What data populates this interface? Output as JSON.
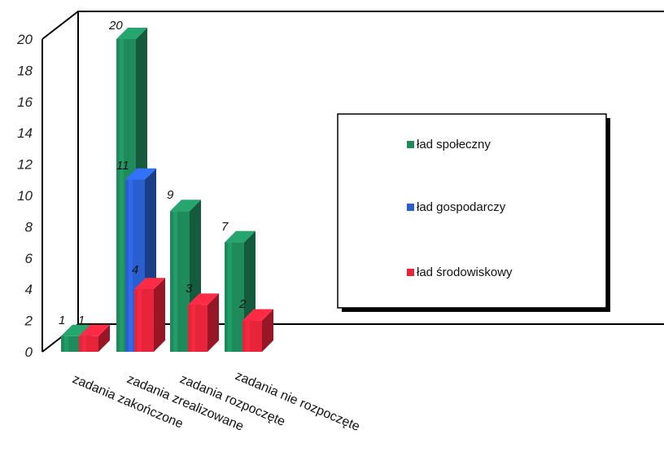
{
  "chart_data": {
    "type": "bar",
    "categories": [
      "zadania zakończone",
      "zadania zrealizowane",
      "zadania rozpoczęte",
      "zadania nie rozpoczęte"
    ],
    "series": [
      {
        "name": "ład społeczny",
        "values": [
          1,
          20,
          9,
          7
        ],
        "color": "#1f8a5c"
      },
      {
        "name": "ład gospodarczy",
        "values": [
          null,
          11,
          null,
          null
        ],
        "color": "#2a5fd0"
      },
      {
        "name": "ład środowiskowy",
        "values": [
          1,
          4,
          3,
          2
        ],
        "color": "#e8243a"
      }
    ],
    "yticks": [
      0,
      2,
      4,
      6,
      8,
      10,
      12,
      14,
      16,
      18,
      20
    ],
    "ylim": [
      0,
      20
    ],
    "legend_position": "right",
    "grid": false,
    "style": "3d"
  }
}
